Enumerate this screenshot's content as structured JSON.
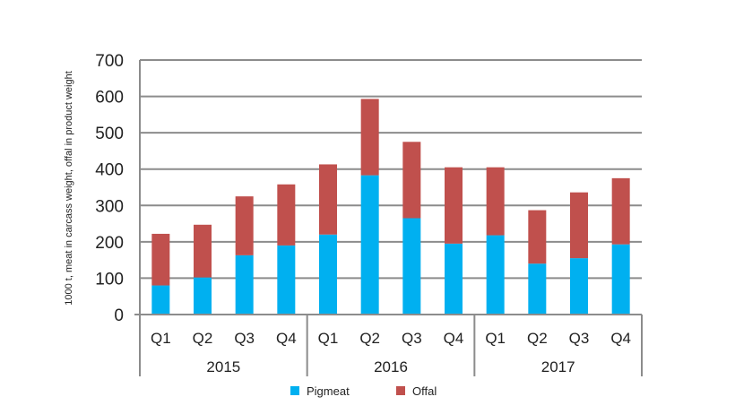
{
  "chart_data": {
    "type": "bar",
    "stacked": true,
    "groups": [
      "2015",
      "2016",
      "2017"
    ],
    "categories": [
      "Q1",
      "Q2",
      "Q3",
      "Q4",
      "Q1",
      "Q2",
      "Q3",
      "Q4",
      "Q1",
      "Q2",
      "Q3",
      "Q4"
    ],
    "series": [
      {
        "name": "Pigmeat",
        "color": "#00B0F0",
        "values": [
          80,
          102,
          163,
          190,
          220,
          383,
          265,
          195,
          218,
          140,
          155,
          193
        ]
      },
      {
        "name": "Offal",
        "color": "#C0504D",
        "values": [
          142,
          145,
          162,
          168,
          193,
          210,
          210,
          210,
          187,
          147,
          181,
          182
        ]
      }
    ],
    "ylabel": "1000 t, meat in carcass weight, offal in product weight",
    "yticks": [
      "0",
      "100",
      "200",
      "300",
      "400",
      "500",
      "600",
      "700"
    ],
    "ylim": [
      0,
      700
    ],
    "grid": true,
    "legend_position": "bottom"
  }
}
